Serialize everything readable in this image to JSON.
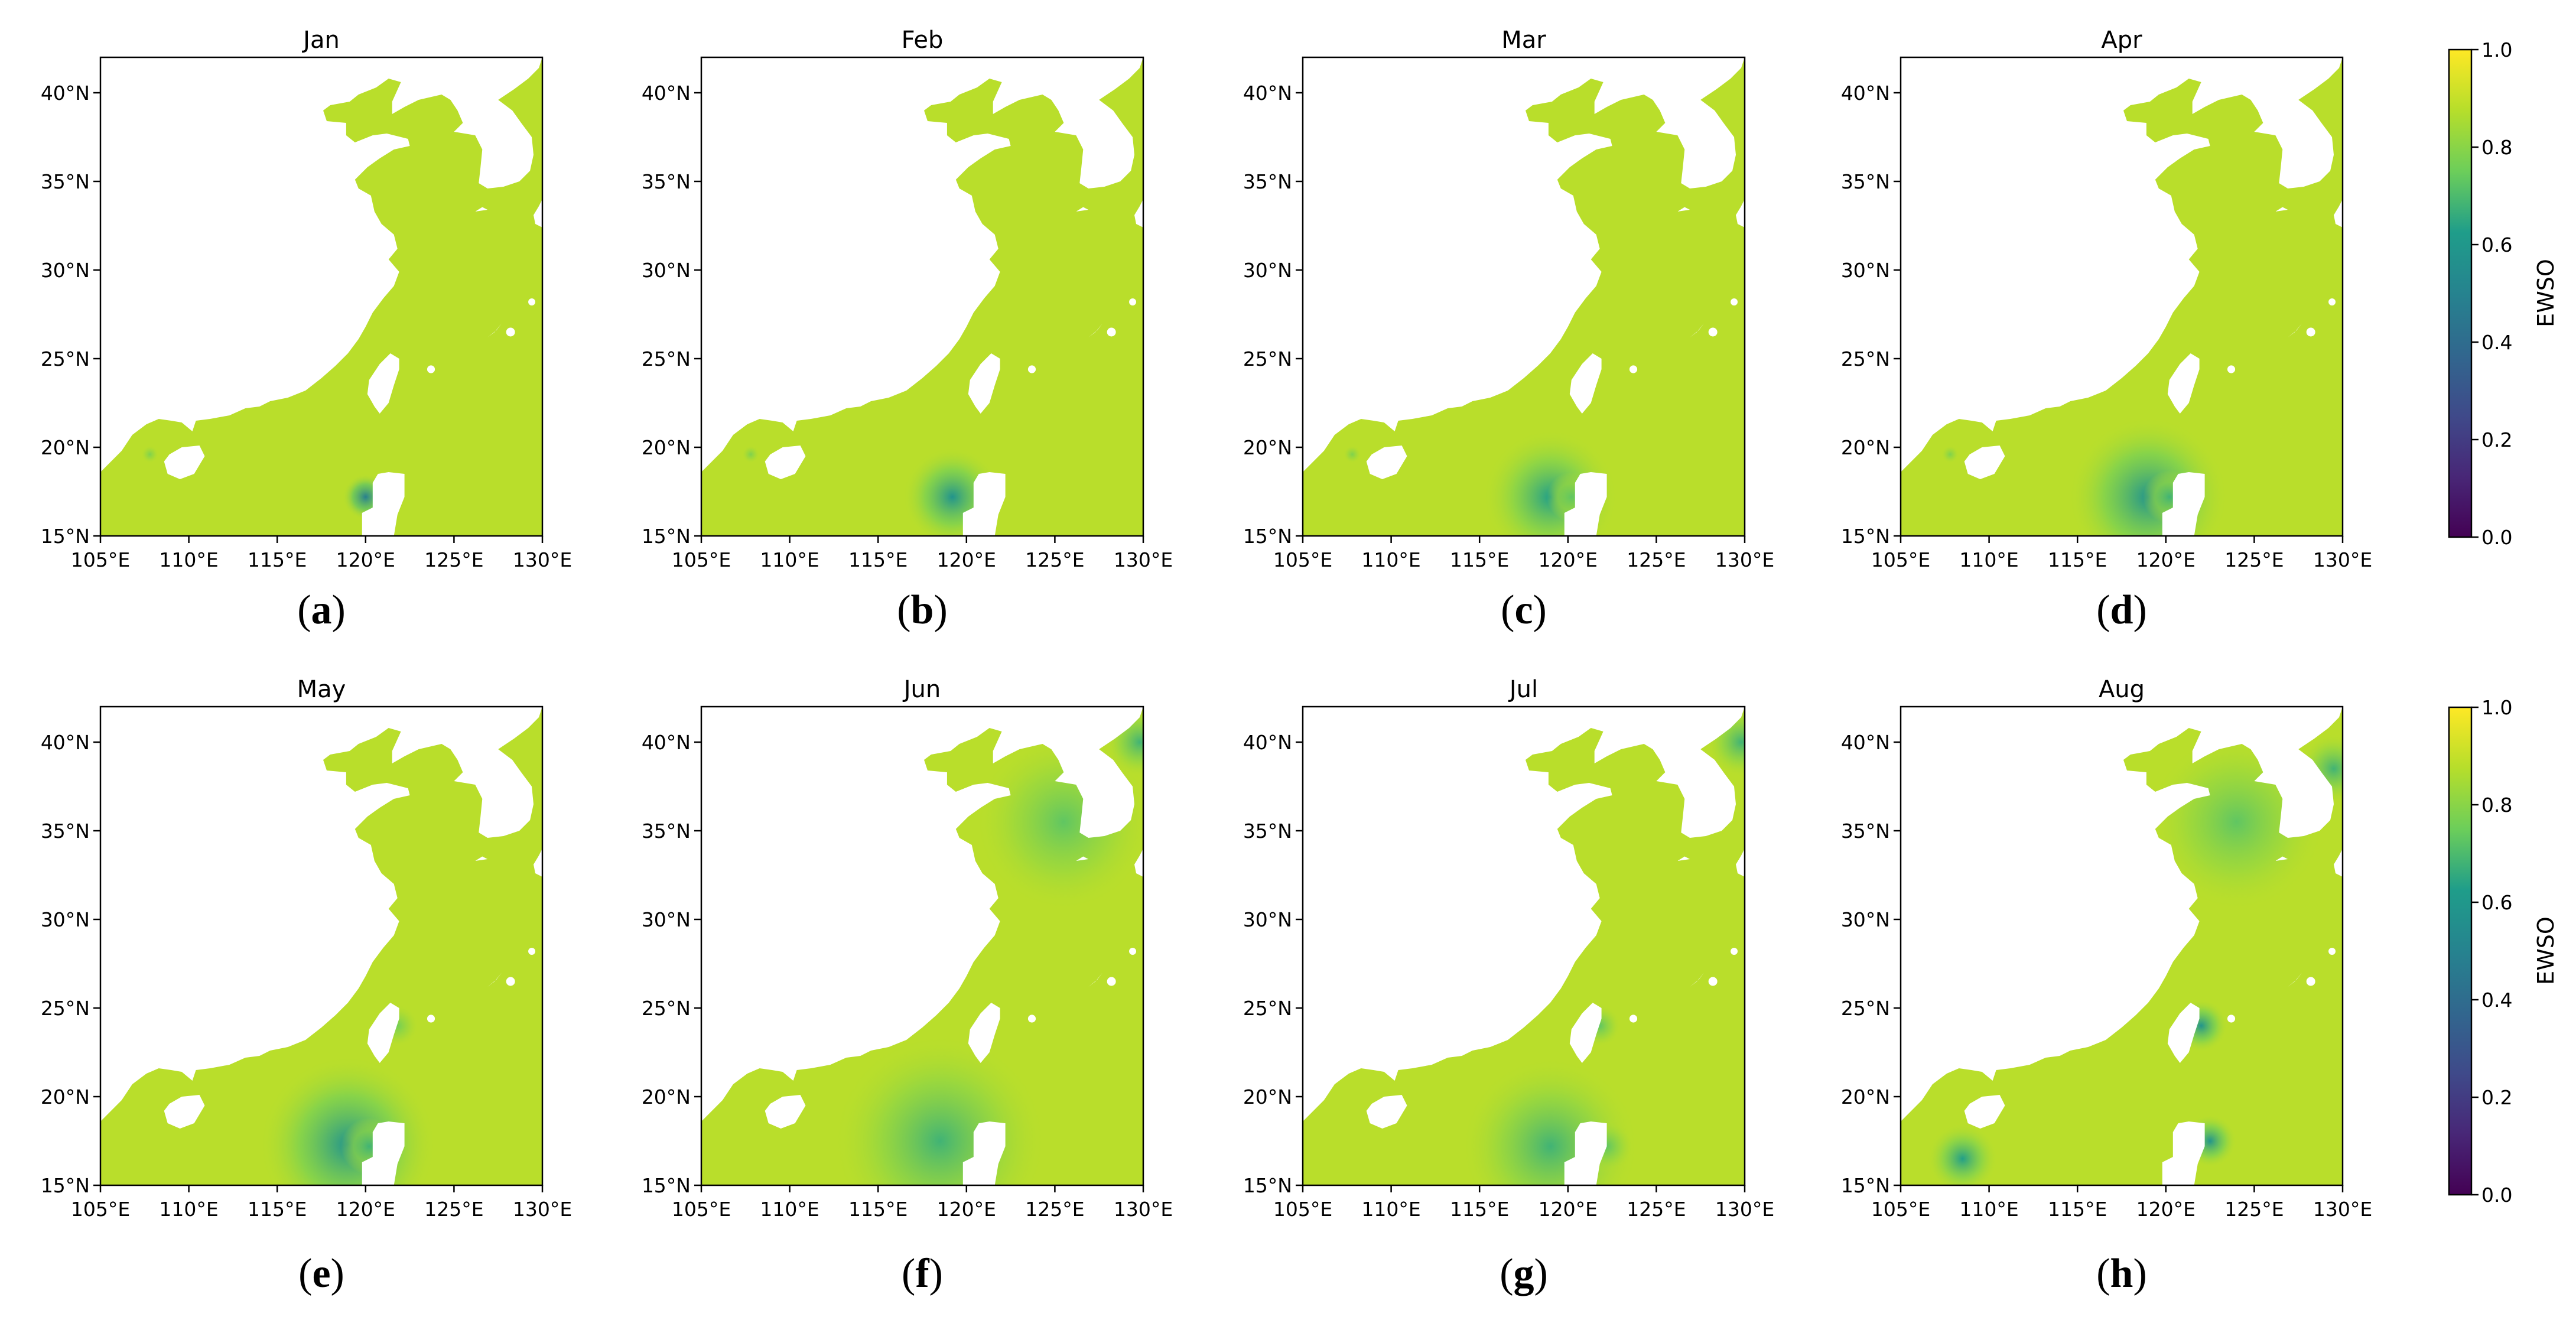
{
  "figure": {
    "panels": [
      {
        "id": "a",
        "letter": "a",
        "title": "Jan",
        "lowspots": [
          [
            120,
            17.2,
            1.3,
            0.4
          ],
          [
            107.8,
            19.6,
            0.5,
            0.1
          ]
        ]
      },
      {
        "id": "b",
        "letter": "b",
        "title": "Feb",
        "lowspots": [
          [
            119.2,
            17.2,
            2.8,
            0.3
          ],
          [
            107.8,
            19.6,
            0.5,
            0.1
          ]
        ]
      },
      {
        "id": "c",
        "letter": "c",
        "title": "Mar",
        "lowspots": [
          [
            119,
            17.2,
            3.8,
            0.25
          ],
          [
            120.2,
            17.2,
            1.4,
            0.15
          ],
          [
            107.8,
            19.6,
            0.5,
            0.1
          ]
        ]
      },
      {
        "id": "d",
        "letter": "d",
        "title": "Apr",
        "lowspots": [
          [
            119,
            17.2,
            4.5,
            0.3
          ],
          [
            120.2,
            17.2,
            1.5,
            0.2
          ],
          [
            107.8,
            19.6,
            0.5,
            0.1
          ]
        ]
      },
      {
        "id": "e",
        "letter": "e",
        "title": "May",
        "lowspots": [
          [
            119,
            17.3,
            5,
            0.3
          ],
          [
            120.2,
            17.2,
            1.6,
            0.2
          ],
          [
            121.8,
            24,
            1.2,
            0.12
          ]
        ]
      },
      {
        "id": "f",
        "letter": "f",
        "title": "Jun",
        "lowspots": [
          [
            118.5,
            17.5,
            6,
            0.2
          ],
          [
            125.5,
            35.5,
            5,
            0.15
          ],
          [
            129.8,
            40,
            2,
            0.2
          ]
        ]
      },
      {
        "id": "g",
        "letter": "g",
        "title": "Jul",
        "lowspots": [
          [
            119,
            17.2,
            5,
            0.2
          ],
          [
            122.2,
            17.2,
            1.5,
            0.15
          ],
          [
            121.8,
            24,
            1.2,
            0.15
          ],
          [
            129.8,
            40,
            2,
            0.2
          ]
        ]
      },
      {
        "id": "h",
        "letter": "h",
        "title": "Aug",
        "lowspots": [
          [
            122.5,
            17.5,
            1.5,
            0.3
          ],
          [
            122,
            24,
            1.5,
            0.3
          ],
          [
            124,
            35.5,
            5,
            0.15
          ],
          [
            108.5,
            16.5,
            2,
            0.25
          ],
          [
            129.5,
            38.5,
            2,
            0.2
          ]
        ]
      }
    ],
    "axes": {
      "x_ticks": [
        105,
        110,
        115,
        120,
        125,
        130
      ],
      "x_tick_labels": [
        "105°E",
        "110°E",
        "115°E",
        "120°E",
        "125°E",
        "130°E"
      ],
      "y_ticks": [
        15,
        20,
        25,
        30,
        35,
        40
      ],
      "y_tick_labels": [
        "15°N",
        "20°N",
        "25°N",
        "30°N",
        "35°N",
        "40°N"
      ],
      "lon_range": [
        105,
        130
      ],
      "lat_range": [
        15,
        42
      ]
    },
    "colorbar": {
      "label": "EWSO",
      "range": [
        0,
        1
      ],
      "ticks": [
        0,
        0.2,
        0.4,
        0.6,
        0.8,
        1.0
      ],
      "tick_labels": [
        "0.0",
        "0.2",
        "0.4",
        "0.6",
        "0.8",
        "1.0"
      ],
      "colormap": "viridis",
      "base_value": 0.88
    },
    "colors": {
      "land": "#ffffff",
      "axis": "#000000",
      "viridis": [
        "#440154",
        "#482777",
        "#3f4a8a",
        "#31678e",
        "#26838f",
        "#1f9d8a",
        "#6cce5a",
        "#b6de2b",
        "#fee825"
      ]
    }
  }
}
